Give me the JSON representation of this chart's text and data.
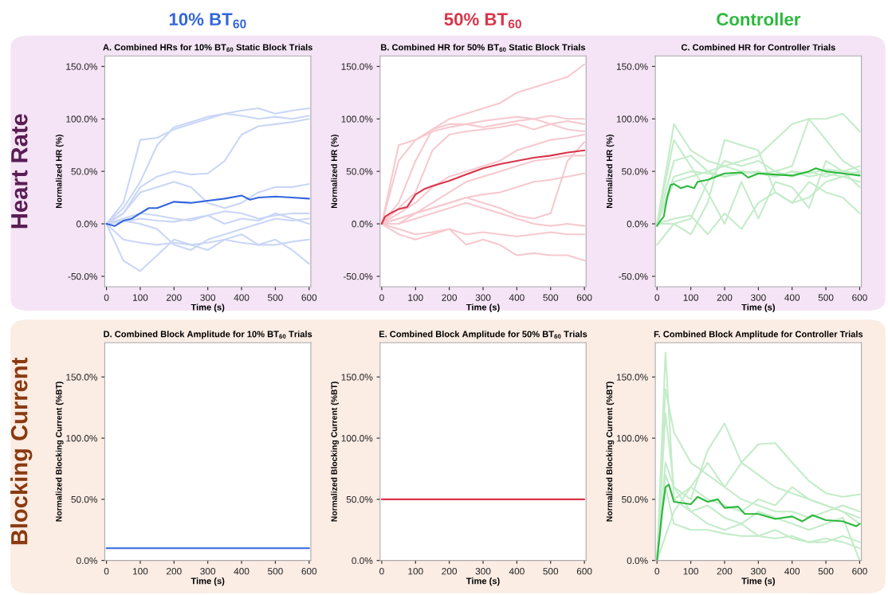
{
  "chart_data": [
    {
      "type": "line",
      "title": "A. Combined HRs for 10% BT$_{60}$ Static Block Trials",
      "xlabel": "Time (s)",
      "ylabel": "Normalized HR (%)",
      "annotations": [
        "10% BT$_{60}$",
        "Heart Rate"
      ],
      "xlim": [
        -5,
        605
      ],
      "xticks": [
        0,
        100,
        200,
        300,
        400,
        500,
        600
      ],
      "ylim": [
        -60,
        160
      ],
      "yticks": [
        {
          "value": -50,
          "label": "-50.0%"
        },
        {
          "value": 0,
          "label": "0.0%"
        },
        {
          "value": 50,
          "label": "50.0%"
        },
        {
          "value": 100,
          "label": "100.0%"
        },
        {
          "value": 150,
          "label": "150.0%"
        }
      ],
      "x": [
        0,
        50,
        100,
        150,
        200,
        250,
        300,
        350,
        400,
        450,
        500,
        550,
        600
      ],
      "series": [
        {
          "color": "#c9d6f6",
          "values": [
            0,
            20,
            80,
            82,
            90,
            95,
            100,
            105,
            108,
            110,
            105,
            108,
            110
          ]
        },
        {
          "color": "#c9d6f6",
          "values": [
            0,
            15,
            40,
            75,
            92,
            97,
            102,
            105,
            103,
            100,
            102,
            100,
            103
          ]
        },
        {
          "color": "#c9d6f6",
          "values": [
            0,
            10,
            35,
            45,
            50,
            47,
            48,
            60,
            85,
            93,
            95,
            97,
            100
          ]
        },
        {
          "color": "#c9d6f6",
          "values": [
            0,
            10,
            30,
            35,
            40,
            35,
            20,
            15,
            20,
            30,
            35,
            35,
            38
          ]
        },
        {
          "color": "#c9d6f6",
          "values": [
            0,
            -35,
            -45,
            -30,
            -15,
            -20,
            -25,
            -15,
            -10,
            -20,
            -15,
            -25,
            -38
          ]
        },
        {
          "color": "#c9d6f6",
          "values": [
            0,
            -15,
            -18,
            -20,
            -18,
            -20,
            -18,
            -15,
            -18,
            -20,
            -20,
            -17,
            -15
          ]
        },
        {
          "color": "#c9d6f6",
          "values": [
            0,
            5,
            10,
            8,
            5,
            3,
            8,
            12,
            10,
            5,
            8,
            10,
            10
          ]
        },
        {
          "color": "#c9d6f6",
          "values": [
            0,
            3,
            0,
            -5,
            -20,
            -25,
            -15,
            -10,
            -5,
            0,
            5,
            3,
            5
          ]
        },
        {
          "color": "#c9d6f6",
          "values": [
            0,
            2,
            5,
            3,
            2,
            5,
            8,
            0,
            5,
            3,
            10,
            5,
            0
          ]
        },
        {
          "color": "#3366dd",
          "x": [
            0,
            25,
            50,
            75,
            100,
            125,
            150,
            175,
            200,
            250,
            300,
            350,
            400,
            425,
            450,
            500,
            550,
            600
          ],
          "values": [
            0,
            -2,
            3,
            5,
            10,
            15,
            15,
            18,
            21,
            20,
            22,
            24,
            27,
            23,
            25,
            26,
            25,
            24
          ]
        }
      ]
    },
    {
      "type": "line",
      "title": "B. Combined HR for 50% BT$_{60}$ Static Block Trials",
      "xlabel": "Time (s)",
      "ylabel": "Normalized HR (%)",
      "annotations": [
        "50% BT$_{60}$"
      ],
      "xlim": [
        -5,
        605
      ],
      "xticks": [
        0,
        100,
        200,
        300,
        400,
        500,
        600
      ],
      "ylim": [
        -60,
        160
      ],
      "yticks": [
        {
          "value": -50,
          "label": "-50.0%"
        },
        {
          "value": 0,
          "label": "0.0%"
        },
        {
          "value": 50,
          "label": "50.0%"
        },
        {
          "value": 100,
          "label": "100.0%"
        },
        {
          "value": 150,
          "label": "150.0%"
        }
      ],
      "x": [
        0,
        50,
        100,
        150,
        200,
        250,
        300,
        350,
        400,
        450,
        500,
        550,
        600
      ],
      "series": [
        {
          "color": "#f6c9cf",
          "values": [
            0,
            60,
            80,
            90,
            100,
            105,
            110,
            115,
            125,
            130,
            135,
            140,
            152
          ]
        },
        {
          "color": "#f6c9cf",
          "values": [
            0,
            75,
            80,
            88,
            92,
            95,
            98,
            100,
            102,
            100,
            103,
            100,
            100
          ]
        },
        {
          "color": "#f6c9cf",
          "values": [
            0,
            20,
            60,
            90,
            95,
            95,
            92,
            95,
            98,
            100,
            95,
            98,
            95
          ]
        },
        {
          "color": "#f6c9cf",
          "values": [
            0,
            15,
            30,
            70,
            85,
            88,
            90,
            92,
            95,
            90,
            95,
            90,
            88
          ]
        },
        {
          "color": "#f6c9cf",
          "values": [
            0,
            10,
            20,
            35,
            45,
            50,
            55,
            60,
            70,
            75,
            80,
            82,
            85
          ]
        },
        {
          "color": "#f6c9cf",
          "values": [
            0,
            5,
            10,
            20,
            30,
            40,
            45,
            50,
            55,
            60,
            62,
            65,
            65
          ]
        },
        {
          "color": "#f6c9cf",
          "values": [
            0,
            0,
            10,
            15,
            20,
            25,
            28,
            30,
            35,
            40,
            42,
            45,
            48
          ]
        },
        {
          "color": "#f6c9cf",
          "values": [
            0,
            -5,
            -10,
            -8,
            -5,
            -20,
            -15,
            -20,
            -30,
            -28,
            -30,
            -30,
            -35
          ]
        },
        {
          "color": "#f6c9cf",
          "values": [
            0,
            -10,
            -15,
            -10,
            -5,
            -10,
            -8,
            -10,
            -12,
            -10,
            -8,
            -10,
            -10
          ]
        },
        {
          "color": "#f6c9cf",
          "values": [
            0,
            0,
            5,
            10,
            15,
            20,
            15,
            10,
            5,
            0,
            -2,
            0,
            -2
          ]
        },
        {
          "color": "#f6c9cf",
          "values": [
            0,
            5,
            10,
            15,
            20,
            25,
            20,
            15,
            8,
            5,
            10,
            60,
            78
          ]
        },
        {
          "color": "#d9344a",
          "x": [
            0,
            10,
            25,
            50,
            75,
            100,
            125,
            150,
            200,
            250,
            300,
            350,
            400,
            450,
            500,
            550,
            600
          ],
          "values": [
            0,
            7,
            10,
            14,
            16,
            28,
            33,
            36,
            41,
            47,
            53,
            57,
            60,
            63,
            65,
            68,
            70
          ]
        }
      ]
    },
    {
      "type": "line",
      "title": "C. Combined HR for Controller Trials",
      "xlabel": "Time (s)",
      "ylabel": "Normalized HR (%)",
      "annotations": [
        "Controller"
      ],
      "xlim": [
        -5,
        605
      ],
      "xticks": [
        0,
        100,
        200,
        300,
        400,
        500,
        600
      ],
      "ylim": [
        -60,
        160
      ],
      "yticks": [
        {
          "value": -50,
          "label": "-50.0%"
        },
        {
          "value": 0,
          "label": "0.0%"
        },
        {
          "value": 50,
          "label": "50.0%"
        },
        {
          "value": 100,
          "label": "100.0%"
        },
        {
          "value": 150,
          "label": "150.0%"
        }
      ],
      "x": [
        0,
        50,
        100,
        150,
        200,
        250,
        300,
        350,
        400,
        450,
        500,
        550,
        600
      ],
      "series": [
        {
          "color": "#c4ecc9",
          "values": [
            0,
            60,
            65,
            50,
            55,
            60,
            65,
            80,
            95,
            100,
            100,
            105,
            88
          ]
        },
        {
          "color": "#c4ecc9",
          "values": [
            0,
            95,
            70,
            60,
            55,
            50,
            48,
            50,
            55,
            100,
            80,
            60,
            50
          ]
        },
        {
          "color": "#c4ecc9",
          "values": [
            0,
            45,
            50,
            48,
            45,
            50,
            48,
            45,
            50,
            48,
            52,
            50,
            48
          ]
        },
        {
          "color": "#c4ecc9",
          "values": [
            0,
            40,
            45,
            50,
            45,
            48,
            50,
            45,
            50,
            45,
            48,
            45,
            40
          ]
        },
        {
          "color": "#c4ecc9",
          "values": [
            0,
            5,
            8,
            -10,
            10,
            -5,
            20,
            30,
            20,
            40,
            30,
            25,
            10
          ]
        },
        {
          "color": "#c4ecc9",
          "values": [
            -20,
            0,
            -10,
            20,
            80,
            75,
            70,
            30,
            20,
            25,
            40,
            45,
            50
          ]
        },
        {
          "color": "#c4ecc9",
          "values": [
            0,
            0,
            5,
            40,
            60,
            55,
            60,
            50,
            45,
            50,
            45,
            50,
            55
          ]
        },
        {
          "color": "#c4ecc9",
          "values": [
            0,
            80,
            55,
            30,
            0,
            40,
            5,
            40,
            35,
            15,
            60,
            50,
            35
          ]
        },
        {
          "color": "#2cb83c",
          "x": [
            0,
            10,
            20,
            30,
            40,
            50,
            70,
            90,
            110,
            120,
            150,
            200,
            250,
            270,
            300,
            350,
            400,
            450,
            470,
            500,
            550,
            600
          ],
          "values": [
            -2,
            3,
            7,
            25,
            37,
            38,
            34,
            36,
            34,
            40,
            42,
            48,
            49,
            44,
            48,
            47,
            46,
            50,
            53,
            50,
            48,
            46
          ]
        }
      ]
    },
    {
      "type": "line",
      "title": "D. Combined Block Amplitude for 10% BT$_{60}$ Trials",
      "xlabel": "Time (s)",
      "ylabel": "Normalized Blocking Current (%BT)",
      "annotations": [
        "Blocking Current"
      ],
      "xlim": [
        -5,
        605
      ],
      "xticks": [
        0,
        100,
        200,
        300,
        400,
        500,
        600
      ],
      "ylim": [
        0,
        178
      ],
      "yticks": [
        {
          "value": 0,
          "label": "0.0%"
        },
        {
          "value": 50,
          "label": "50.0%"
        },
        {
          "value": 100,
          "label": "100.0%"
        },
        {
          "value": 150,
          "label": "150.0%"
        }
      ],
      "x": [
        0,
        600
      ],
      "series": [
        {
          "color": "#3366dd",
          "values": [
            10,
            10
          ]
        }
      ]
    },
    {
      "type": "line",
      "title": "E. Combined Block Amplitude for 50% BT$_{60}$ Trials",
      "xlabel": "Time (s)",
      "ylabel": "Normalized Blocking Current (%BT)",
      "xlim": [
        -5,
        605
      ],
      "xticks": [
        0,
        100,
        200,
        300,
        400,
        500,
        600
      ],
      "ylim": [
        0,
        178
      ],
      "yticks": [
        {
          "value": 0,
          "label": "0.0%"
        },
        {
          "value": 50,
          "label": "50.0%"
        },
        {
          "value": 100,
          "label": "100.0%"
        },
        {
          "value": 150,
          "label": "150.0%"
        }
      ],
      "x": [
        0,
        600
      ],
      "series": [
        {
          "color": "#d9344a",
          "values": [
            50,
            50
          ]
        }
      ]
    },
    {
      "type": "line",
      "title": "F. Combined Block Amplitude for Controller Trials",
      "xlabel": "Time (s)",
      "ylabel": "Normalized Blocking Current (%BT)",
      "xlim": [
        -5,
        605
      ],
      "xticks": [
        0,
        100,
        200,
        300,
        400,
        500,
        600
      ],
      "ylim": [
        0,
        178
      ],
      "yticks": [
        {
          "value": 0,
          "label": "0.0%"
        },
        {
          "value": 50,
          "label": "50.0%"
        },
        {
          "value": 100,
          "label": "100.0%"
        },
        {
          "value": 150,
          "label": "150.0%"
        }
      ],
      "x": [
        0,
        25,
        50,
        100,
        150,
        200,
        250,
        300,
        350,
        400,
        450,
        500,
        550,
        600
      ],
      "series": [
        {
          "color": "#c4ecc9",
          "values": [
            0,
            170,
            50,
            40,
            45,
            35,
            30,
            40,
            35,
            30,
            25,
            30,
            35,
            0
          ]
        },
        {
          "color": "#c4ecc9",
          "values": [
            0,
            140,
            105,
            80,
            70,
            60,
            50,
            45,
            40,
            40,
            35,
            40,
            45,
            40
          ]
        },
        {
          "color": "#c4ecc9",
          "values": [
            0,
            120,
            60,
            50,
            90,
            112,
            80,
            70,
            60,
            55,
            50,
            45,
            40,
            30
          ]
        },
        {
          "color": "#c4ecc9",
          "values": [
            0,
            20,
            40,
            60,
            80,
            60,
            80,
            95,
            96,
            80,
            65,
            55,
            52,
            54
          ]
        },
        {
          "color": "#c4ecc9",
          "values": [
            0,
            60,
            30,
            25,
            25,
            22,
            20,
            20,
            18,
            20,
            15,
            15,
            20,
            15
          ]
        },
        {
          "color": "#c4ecc9",
          "values": [
            0,
            80,
            60,
            40,
            30,
            25,
            30,
            20,
            25,
            18,
            15,
            18,
            15,
            10
          ]
        },
        {
          "color": "#c4ecc9",
          "values": [
            0,
            70,
            50,
            60,
            50,
            45,
            40,
            50,
            45,
            60,
            50,
            45,
            40,
            35
          ]
        },
        {
          "color": "#2cb83c",
          "x": [
            0,
            15,
            25,
            35,
            50,
            75,
            100,
            120,
            150,
            180,
            200,
            240,
            260,
            300,
            350,
            400,
            430,
            460,
            500,
            550,
            590,
            600
          ],
          "values": [
            0,
            40,
            60,
            62,
            48,
            47,
            46,
            52,
            48,
            50,
            43,
            44,
            38,
            38,
            34,
            36,
            32,
            37,
            33,
            32,
            28,
            30
          ]
        }
      ]
    }
  ]
}
